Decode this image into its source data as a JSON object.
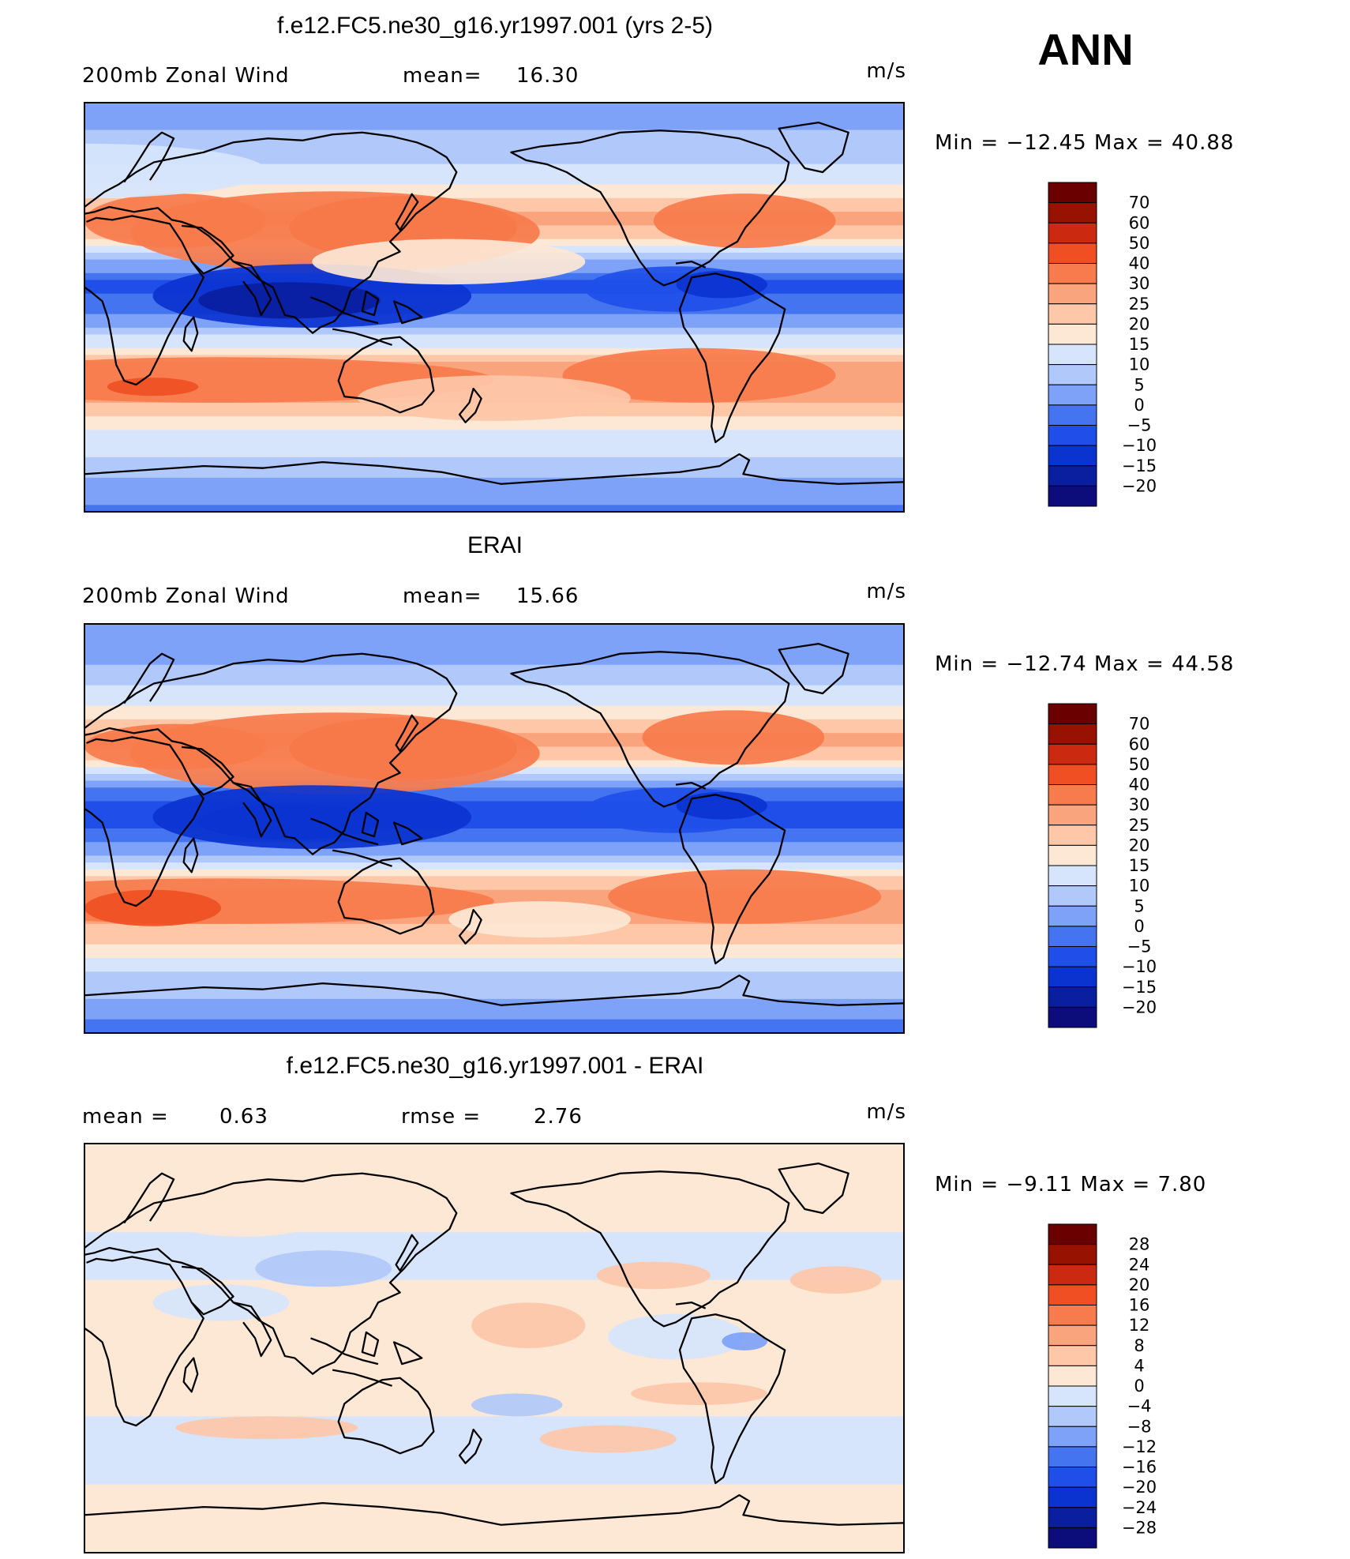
{
  "figure": {
    "season": "ANN",
    "units": "m/s"
  },
  "colors": {
    "main_scale": [
      "#0c0c7a",
      "#0a1ea0",
      "#0b33d0",
      "#1f4fe8",
      "#4474ef",
      "#7ea2f7",
      "#b1c9fa",
      "#d6e5fc",
      "#fde7d5",
      "#fdc7a8",
      "#f9a47d",
      "#f77b4c",
      "#ef4f22",
      "#cc2a10",
      "#981200",
      "#6a0000"
    ],
    "diff_scale": [
      "#0c0c7a",
      "#0a1ea0",
      "#0b33d0",
      "#1f4fe8",
      "#4474ef",
      "#7ea2f7",
      "#b1c9fa",
      "#d6e5fc",
      "#fde7d5",
      "#fdc7a8",
      "#f9a47d",
      "#f77b4c",
      "#ef4f22",
      "#cc2a10",
      "#981200",
      "#6a0000"
    ]
  },
  "panels": [
    {
      "title": "f.e12.FC5.ne30_g16.yr1997.001 (yrs 2-5)",
      "variable": "200mb Zonal Wind",
      "stat_left_label": "mean=",
      "stat_left_value": "16.30",
      "units": "m/s",
      "minmax": "Min = −12.45 Max =   40.88",
      "colorbar_labels": [
        "70",
        "60",
        "50",
        "40",
        "30",
        "25",
        "20",
        "15",
        "10",
        "5",
        "0",
        "−5",
        "−10",
        "−15",
        "−20"
      ]
    },
    {
      "title": "ERAI",
      "variable": "200mb Zonal Wind",
      "stat_left_label": "mean=",
      "stat_left_value": "15.66",
      "units": "m/s",
      "minmax": "Min = −12.74 Max =   44.58",
      "colorbar_labels": [
        "70",
        "60",
        "50",
        "40",
        "30",
        "25",
        "20",
        "15",
        "10",
        "5",
        "0",
        "−5",
        "−10",
        "−15",
        "−20"
      ]
    },
    {
      "title": "f.e12.FC5.ne30_g16.yr1997.001 - ERAI",
      "stat_left_label": "mean =",
      "stat_left_value": "0.63",
      "stat_right_label": "rmse =",
      "stat_right_value": "2.76",
      "units": "m/s",
      "minmax": "Min =   −9.11 Max =    7.80",
      "colorbar_labels": [
        "28",
        "24",
        "20",
        "16",
        "12",
        "8",
        "4",
        "0",
        "−4",
        "−8",
        "−12",
        "−16",
        "−20",
        "−24",
        "−28"
      ]
    }
  ],
  "chart_data": [
    {
      "type": "heatmap",
      "title": "f.e12.FC5.ne30_g16.yr1997.001 (yrs 2-5)",
      "variable": "200mb Zonal Wind",
      "units": "m/s",
      "mean": 16.3,
      "min": -12.45,
      "max": 40.88,
      "contour_levels": [
        -20,
        -15,
        -10,
        -5,
        0,
        5,
        10,
        15,
        20,
        25,
        30,
        40,
        50,
        60,
        70
      ],
      "lon_range": [
        0,
        360
      ],
      "lat_range": [
        -90,
        90
      ],
      "zonal_profile": {
        "lat": [
          -90,
          -80,
          -70,
          -60,
          -50,
          -40,
          -30,
          -20,
          -10,
          0,
          10,
          20,
          30,
          40,
          50,
          60,
          70,
          80,
          90
        ],
        "u": [
          -2,
          3,
          8,
          12,
          18,
          26,
          30,
          20,
          5,
          -4,
          -6,
          4,
          22,
          26,
          18,
          12,
          7,
          4,
          2
        ]
      }
    },
    {
      "type": "heatmap",
      "title": "ERAI",
      "variable": "200mb Zonal Wind",
      "units": "m/s",
      "mean": 15.66,
      "min": -12.74,
      "max": 44.58,
      "contour_levels": [
        -20,
        -15,
        -10,
        -5,
        0,
        5,
        10,
        15,
        20,
        25,
        30,
        40,
        50,
        60,
        70
      ],
      "lon_range": [
        0,
        360
      ],
      "lat_range": [
        -90,
        90
      ],
      "zonal_profile": {
        "lat": [
          -90,
          -80,
          -70,
          -60,
          -50,
          -40,
          -30,
          -20,
          -10,
          0,
          10,
          20,
          30,
          40,
          50,
          60,
          70,
          80,
          90
        ],
        "u": [
          -2,
          2,
          7,
          12,
          20,
          27,
          30,
          18,
          4,
          -5,
          -7,
          3,
          22,
          28,
          18,
          12,
          6,
          3,
          1
        ]
      }
    },
    {
      "type": "heatmap",
      "title": "f.e12.FC5.ne30_g16.yr1997.001 - ERAI",
      "units": "m/s",
      "mean": 0.63,
      "rmse": 2.76,
      "min": -9.11,
      "max": 7.8,
      "contour_levels": [
        -28,
        -24,
        -20,
        -16,
        -12,
        -8,
        -4,
        0,
        4,
        8,
        12,
        16,
        20,
        24,
        28
      ],
      "lon_range": [
        0,
        360
      ],
      "lat_range": [
        -90,
        90
      ],
      "zonal_profile": {
        "lat": [
          -90,
          -80,
          -70,
          -60,
          -50,
          -40,
          -30,
          -20,
          -10,
          0,
          10,
          20,
          30,
          40,
          50,
          60,
          70,
          80,
          90
        ],
        "u": [
          0,
          1,
          1,
          0,
          -1,
          -1,
          0,
          2,
          1,
          1,
          1,
          1,
          0,
          -2,
          0,
          0,
          1,
          1,
          1
        ]
      }
    }
  ]
}
